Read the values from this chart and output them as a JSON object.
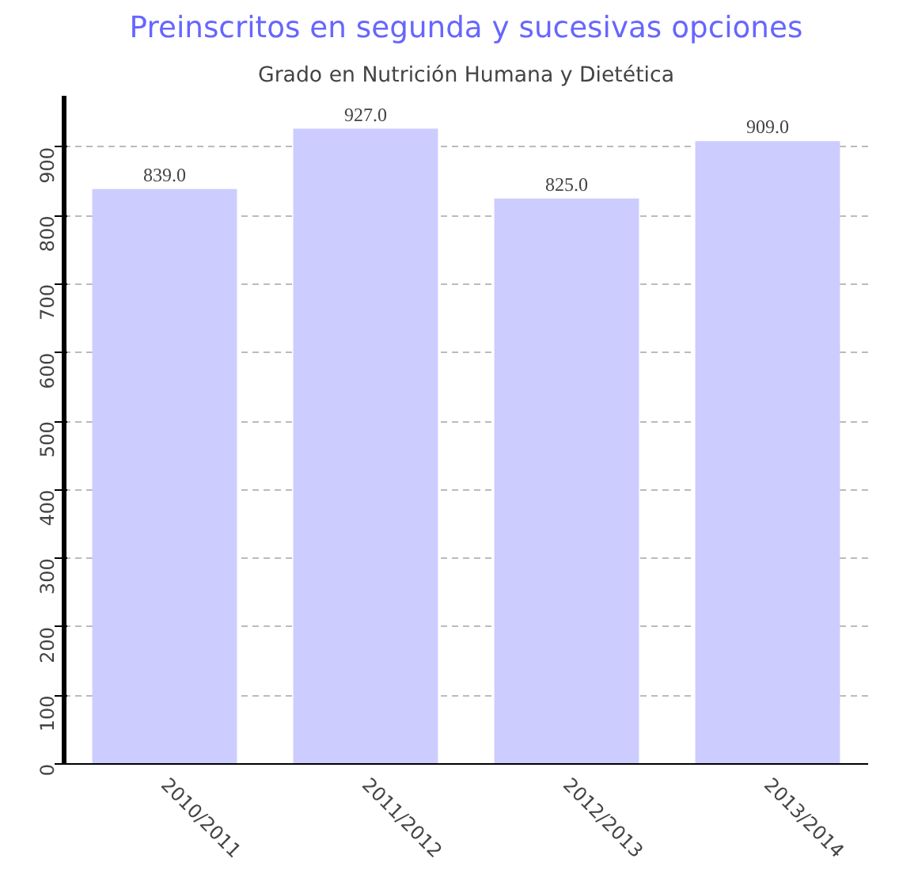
{
  "chart_data": {
    "type": "bar",
    "title": "Preinscritos en segunda y sucesivas opciones",
    "subtitle": "Grado en Nutrición Humana y Dietética",
    "categories": [
      "2010/2011",
      "2011/2012",
      "2012/2013",
      "2013/2014"
    ],
    "values": [
      839,
      927,
      825,
      909
    ],
    "color": "#ccccff",
    "value_labels": [
      "839.0",
      "927.0",
      "825.0",
      "909.0"
    ],
    "ylim": [
      0,
      975
    ],
    "yticks": [
      0,
      100,
      200,
      300,
      400,
      500,
      600,
      700,
      800,
      900
    ],
    "grid": "y"
  }
}
